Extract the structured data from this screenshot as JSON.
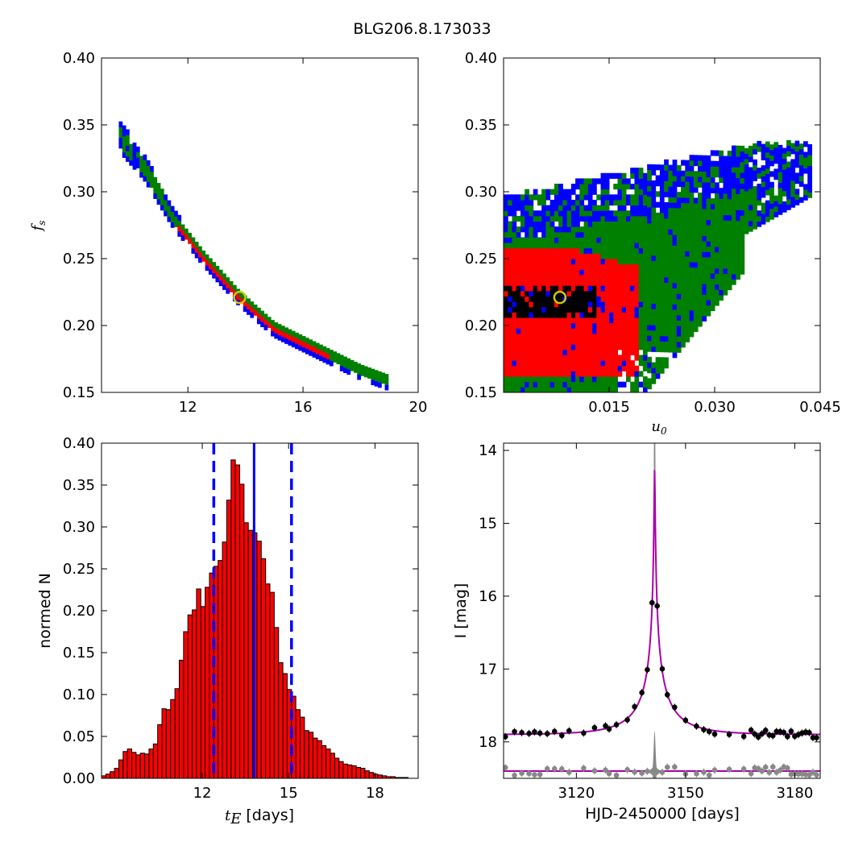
{
  "figure": {
    "title": "BLG206.8.173033"
  },
  "chart_data": [
    {
      "id": "fs_vs_tE",
      "type": "heatmap",
      "title": "",
      "ylabel": "f_s",
      "xlabel": "",
      "xlim": [
        9,
        20
      ],
      "ylim": [
        0.15,
        0.4
      ],
      "xticks": [
        "12",
        "16",
        "20"
      ],
      "yticks": [
        "0.15",
        "0.20",
        "0.25",
        "0.30",
        "0.35",
        "0.40"
      ],
      "colors": {
        "outer": "#0000ff",
        "middle": "#008000",
        "inner": "#ff0000",
        "core": "#000000",
        "best": "#cccc00"
      },
      "ridge": [
        [
          9.6,
          0.342
        ],
        [
          10.5,
          0.318
        ],
        [
          11.5,
          0.28
        ],
        [
          12.5,
          0.252
        ],
        [
          13.8,
          0.221
        ],
        [
          15.0,
          0.198
        ],
        [
          16.5,
          0.182
        ],
        [
          18.0,
          0.166
        ],
        [
          19.0,
          0.158
        ]
      ],
      "best_fit": {
        "x": 13.8,
        "y": 0.221
      }
    },
    {
      "id": "fs_vs_u0",
      "type": "heatmap",
      "title": "",
      "xlabel": "u_0",
      "ylabel": "",
      "xlim": [
        0.0,
        0.045
      ],
      "ylim": [
        0.15,
        0.4
      ],
      "xticks": [
        "0.015",
        "0.030",
        "0.045"
      ],
      "yticks": [
        "0.15",
        "0.20",
        "0.25",
        "0.30",
        "0.35",
        "0.40"
      ],
      "best_fit": {
        "x": 0.008,
        "y": 0.221
      }
    },
    {
      "id": "tE_histogram",
      "type": "bar",
      "xlabel": "t_E [days]",
      "ylabel": "normed N",
      "xlim": [
        8.5,
        19.5
      ],
      "ylim": [
        0,
        0.4
      ],
      "xticks": [
        "12",
        "15",
        "18"
      ],
      "yticks": [
        "0.00",
        "0.05",
        "0.10",
        "0.15",
        "0.20",
        "0.25",
        "0.30",
        "0.35",
        "0.40"
      ],
      "bin_start": 8.5,
      "bin_width": 0.15,
      "values": [
        0.003,
        0.005,
        0.008,
        0.012,
        0.022,
        0.032,
        0.035,
        0.031,
        0.028,
        0.03,
        0.029,
        0.035,
        0.041,
        0.064,
        0.083,
        0.082,
        0.094,
        0.107,
        0.141,
        0.175,
        0.195,
        0.201,
        0.226,
        0.205,
        0.228,
        0.245,
        0.253,
        0.26,
        0.282,
        0.332,
        0.38,
        0.374,
        0.351,
        0.305,
        0.296,
        0.293,
        0.283,
        0.262,
        0.232,
        0.222,
        0.18,
        0.138,
        0.125,
        0.106,
        0.098,
        0.082,
        0.073,
        0.057,
        0.055,
        0.048,
        0.045,
        0.039,
        0.035,
        0.03,
        0.024,
        0.02,
        0.017,
        0.016,
        0.015,
        0.013,
        0.012,
        0.009,
        0.007,
        0.005,
        0.004,
        0.003,
        0.002,
        0.002,
        0.001,
        0.001,
        0.001
      ],
      "median": 13.8,
      "lower": 12.4,
      "upper": 15.1,
      "bar_color": "#ff0000",
      "line_color": "#0000ff"
    },
    {
      "id": "lightcurve",
      "type": "scatter",
      "xlabel": "HJD-2450000 [days]",
      "ylabel": "I [mag]",
      "xlim": [
        3100,
        3187
      ],
      "ylim": [
        18.5,
        13.9
      ],
      "xticks": [
        "3120",
        "3150",
        "3180"
      ],
      "yticks": [
        "14",
        "15",
        "16",
        "17",
        "18"
      ],
      "model": {
        "t0": 3141.5,
        "u0": 0.008,
        "tE": 13.8,
        "baseline": 17.9,
        "color": "#aa00aa"
      },
      "residual_offset": 18.4,
      "data_color": "#000000",
      "residual_color": "#888888"
    }
  ]
}
